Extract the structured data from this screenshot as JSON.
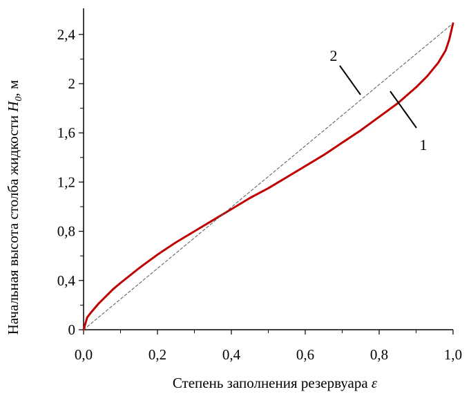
{
  "chart_data": {
    "type": "line",
    "title": "",
    "xlabel": "Степень заполнения резервуара",
    "xlabel_symbol": "ε",
    "ylabel_main": "Начальная высота столба жидкости",
    "ylabel_symbol": "H",
    "ylabel_subscript": "0",
    "ylabel_unit": ", м",
    "xlim": [
      0,
      1
    ],
    "ylim": [
      0,
      2.5
    ],
    "x_ticks": [
      0,
      0.2,
      0.4,
      0.6,
      0.8,
      1.0
    ],
    "x_tick_labels": [
      "0,0",
      "0,2",
      "0,4",
      "0,6",
      "0,8",
      "1,0"
    ],
    "y_ticks": [
      0,
      0.4,
      0.8,
      1.2,
      1.6,
      2.0,
      2.4
    ],
    "y_tick_labels": [
      "0",
      "0,4",
      "0,8",
      "1,2",
      "1,6",
      "2",
      "2,4"
    ],
    "grid": false,
    "series": [
      {
        "label": "1",
        "color": "#c00000",
        "style": "solid",
        "x": [
          0,
          0.01,
          0.02,
          0.04,
          0.06,
          0.08,
          0.1,
          0.15,
          0.2,
          0.25,
          0.3,
          0.35,
          0.4,
          0.45,
          0.5,
          0.55,
          0.6,
          0.65,
          0.7,
          0.75,
          0.8,
          0.85,
          0.9,
          0.93,
          0.96,
          0.98,
          0.99,
          1.0
        ],
        "values": [
          0,
          0.1,
          0.14,
          0.21,
          0.27,
          0.33,
          0.38,
          0.5,
          0.61,
          0.71,
          0.8,
          0.89,
          0.98,
          1.07,
          1.15,
          1.24,
          1.33,
          1.42,
          1.52,
          1.62,
          1.73,
          1.84,
          1.97,
          2.06,
          2.17,
          2.27,
          2.36,
          2.49
        ]
      },
      {
        "label": "2",
        "color": "#555555",
        "style": "dashed",
        "x": [
          0,
          1.0
        ],
        "values": [
          0,
          2.49
        ]
      }
    ]
  }
}
